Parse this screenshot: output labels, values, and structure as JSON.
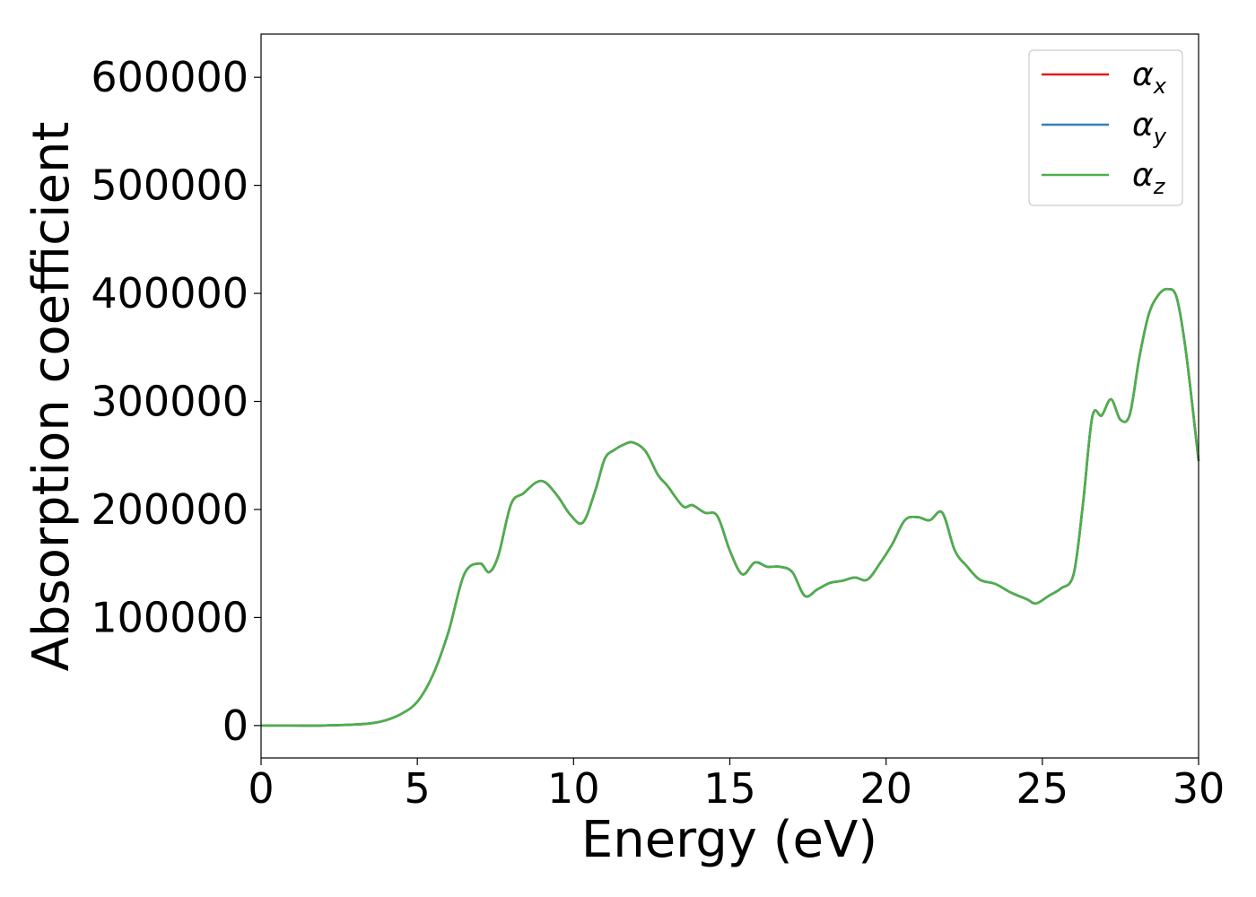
{
  "chart_data": {
    "type": "line",
    "xlabel": "Energy (eV)",
    "ylabel": "Absorption coefficient",
    "xlim": [
      0,
      30
    ],
    "ylim": [
      -30000,
      640000
    ],
    "x_ticks": [
      0,
      5,
      10,
      15,
      20,
      25,
      30
    ],
    "y_ticks": [
      0,
      100000,
      200000,
      300000,
      400000,
      500000,
      600000
    ],
    "grid": false,
    "legend_position": "top-right",
    "series": [
      {
        "name": "α",
        "name_subscript": "x",
        "color": "#e41a1c",
        "x": [
          0,
          1,
          2,
          3,
          3.5,
          4,
          4.5,
          5,
          5.5,
          6,
          6.5,
          7,
          7.3,
          7.6,
          8,
          8.4,
          8.8,
          9.1,
          9.5,
          9.9,
          10.3,
          10.7,
          11,
          11.3,
          11.6,
          11.9,
          12.3,
          12.7,
          13,
          13.5,
          13.8,
          14.2,
          14.6,
          15,
          15.4,
          15.8,
          16.2,
          16.6,
          17,
          17.4,
          17.8,
          18.2,
          18.6,
          19,
          19.4,
          19.8,
          20.2,
          20.6,
          21,
          21.4,
          21.8,
          22.2,
          22.6,
          23,
          23.5,
          24,
          24.5,
          24.8,
          25.2,
          25.6,
          26,
          26.3,
          26.6,
          26.9,
          27.2,
          27.5,
          27.8,
          28.1,
          28.4,
          28.7,
          29,
          29.3,
          29.6,
          30
        ],
        "values": [
          0,
          0,
          0,
          1000,
          2000,
          5000,
          11000,
          22000,
          47000,
          87000,
          140000,
          150000,
          142000,
          158000,
          205000,
          215000,
          225000,
          225000,
          212000,
          195000,
          188000,
          218000,
          247000,
          255000,
          260000,
          262000,
          254000,
          232000,
          222000,
          203000,
          204000,
          197000,
          194000,
          162000,
          140000,
          151000,
          147000,
          147000,
          142000,
          120000,
          126000,
          132000,
          134000,
          137000,
          135000,
          150000,
          168000,
          190000,
          193000,
          190000,
          197000,
          162000,
          147000,
          135000,
          131000,
          123000,
          117000,
          113000,
          120000,
          127000,
          140000,
          205000,
          286000,
          287000,
          302000,
          283000,
          288000,
          340000,
          380000,
          398000,
          404000,
          396000,
          345000,
          245000
        ]
      },
      {
        "name": "α",
        "name_subscript": "y",
        "color": "#377eb8",
        "x": [
          0,
          1,
          2,
          3,
          3.5,
          4,
          4.5,
          5,
          5.5,
          6,
          6.5,
          7,
          7.3,
          7.6,
          8,
          8.4,
          8.8,
          9.1,
          9.5,
          9.9,
          10.3,
          10.7,
          11,
          11.3,
          11.6,
          11.9,
          12.3,
          12.7,
          13,
          13.5,
          13.8,
          14.2,
          14.6,
          15,
          15.4,
          15.8,
          16.2,
          16.6,
          17,
          17.4,
          17.8,
          18.2,
          18.6,
          19,
          19.4,
          19.8,
          20.2,
          20.6,
          21,
          21.4,
          21.8,
          22.2,
          22.6,
          23,
          23.5,
          24,
          24.5,
          24.8,
          25.2,
          25.6,
          26,
          26.3,
          26.6,
          26.9,
          27.2,
          27.5,
          27.8,
          28.1,
          28.4,
          28.7,
          29,
          29.3,
          29.6,
          30
        ],
        "values": [
          0,
          0,
          0,
          1000,
          2000,
          5000,
          11000,
          22000,
          47000,
          87000,
          140000,
          150000,
          142000,
          158000,
          205000,
          215000,
          225000,
          225000,
          212000,
          195000,
          188000,
          218000,
          247000,
          255000,
          260000,
          262000,
          254000,
          232000,
          222000,
          203000,
          204000,
          197000,
          194000,
          162000,
          140000,
          151000,
          147000,
          147000,
          142000,
          120000,
          126000,
          132000,
          134000,
          137000,
          135000,
          150000,
          168000,
          190000,
          193000,
          190000,
          197000,
          162000,
          147000,
          135000,
          131000,
          123000,
          117000,
          113000,
          120000,
          127000,
          140000,
          205000,
          286000,
          287000,
          302000,
          283000,
          288000,
          340000,
          380000,
          398000,
          404000,
          396000,
          345000,
          245000
        ]
      },
      {
        "name": "α",
        "name_subscript": "z",
        "color": "#4daf4a",
        "x": [
          0,
          1,
          2,
          3,
          3.5,
          4,
          4.5,
          5,
          5.5,
          6,
          6.5,
          7,
          7.3,
          7.6,
          8,
          8.4,
          8.8,
          9.1,
          9.5,
          9.9,
          10.3,
          10.7,
          11,
          11.3,
          11.6,
          11.9,
          12.3,
          12.7,
          13,
          13.5,
          13.8,
          14.2,
          14.6,
          15,
          15.4,
          15.8,
          16.2,
          16.6,
          17,
          17.4,
          17.8,
          18.2,
          18.6,
          19,
          19.4,
          19.8,
          20.2,
          20.6,
          21,
          21.4,
          21.8,
          22.2,
          22.6,
          23,
          23.5,
          24,
          24.5,
          24.8,
          25.2,
          25.6,
          26,
          26.3,
          26.6,
          26.9,
          27.2,
          27.5,
          27.8,
          28.1,
          28.4,
          28.7,
          29,
          29.3,
          29.6,
          30
        ],
        "values": [
          0,
          0,
          0,
          1000,
          2000,
          5000,
          11000,
          22000,
          47000,
          87000,
          140000,
          150000,
          142000,
          158000,
          205000,
          215000,
          225000,
          225000,
          212000,
          195000,
          188000,
          218000,
          247000,
          255000,
          260000,
          262000,
          254000,
          232000,
          222000,
          203000,
          204000,
          197000,
          194000,
          162000,
          140000,
          151000,
          147000,
          147000,
          142000,
          120000,
          126000,
          132000,
          134000,
          137000,
          135000,
          150000,
          168000,
          190000,
          193000,
          190000,
          197000,
          162000,
          147000,
          135000,
          131000,
          123000,
          117000,
          113000,
          120000,
          127000,
          140000,
          205000,
          286000,
          287000,
          302000,
          283000,
          288000,
          340000,
          380000,
          398000,
          404000,
          396000,
          345000,
          245000
        ]
      }
    ]
  }
}
